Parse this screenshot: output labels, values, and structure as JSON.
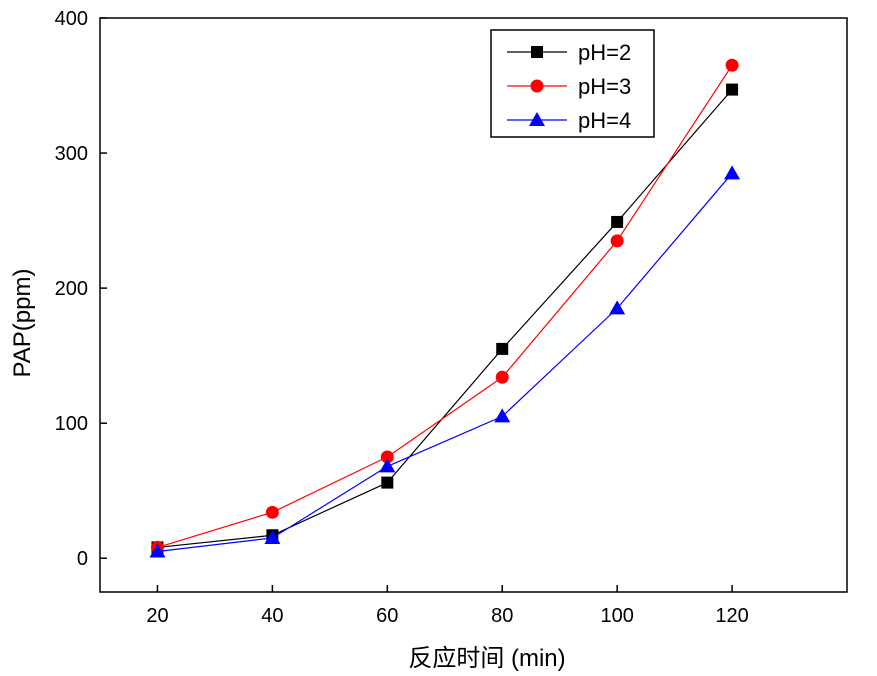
{
  "chart_data": {
    "type": "line",
    "title": "",
    "xlabel": "反应时间 (min)",
    "ylabel": "PAP(ppm)",
    "x": [
      20,
      40,
      60,
      80,
      100,
      120
    ],
    "xlim": [
      10,
      140
    ],
    "ylim": [
      -25,
      400
    ],
    "xticks": [
      20,
      40,
      60,
      80,
      100,
      120
    ],
    "yticks": [
      0,
      100,
      200,
      300,
      400
    ],
    "grid": false,
    "legend_position": "top-right",
    "series": [
      {
        "name": "pH=2",
        "marker": "square",
        "color": "#000000",
        "values": [
          8,
          17,
          56,
          155,
          249,
          347
        ]
      },
      {
        "name": "pH=3",
        "marker": "circle",
        "color": "#ff0000",
        "values": [
          8,
          34,
          75,
          134,
          235,
          365
        ]
      },
      {
        "name": "pH=4",
        "marker": "triangle",
        "color": "#0000ff",
        "values": [
          5,
          15,
          68,
          105,
          185,
          285
        ]
      }
    ]
  }
}
